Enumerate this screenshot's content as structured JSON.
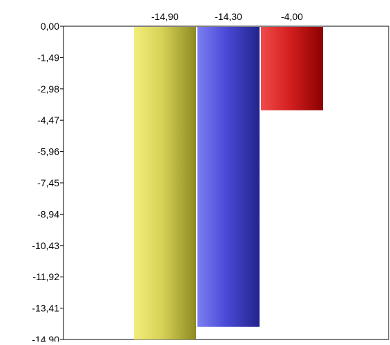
{
  "chart_data": {
    "type": "bar",
    "title": "",
    "xlabel": "",
    "ylabel": "",
    "ylim": [
      -14.9,
      0
    ],
    "y_ticks": [
      "0,00",
      "-1,49",
      "-2,98",
      "-4,47",
      "-5,96",
      "-7,45",
      "-8,94",
      "-10,43",
      "-11,92",
      "-13,41",
      "-14,90"
    ],
    "y_tick_values": [
      0,
      -1.49,
      -2.98,
      -4.47,
      -5.96,
      -7.45,
      -8.94,
      -10.43,
      -11.92,
      -13.41,
      -14.9
    ],
    "grid": false,
    "legend": "none",
    "bars": [
      {
        "value": -14.9,
        "label": "-14,90",
        "color_light": "#f2ee7a",
        "color_mid": "#d6d257",
        "color_dark": "#8f8a22"
      },
      {
        "value": -14.3,
        "label": "-14,30",
        "color_light": "#7d7ef0",
        "color_mid": "#4a4bd8",
        "color_dark": "#23238c"
      },
      {
        "value": -4.0,
        "label": "-4,00",
        "color_light": "#ef4b4b",
        "color_mid": "#d62020",
        "color_dark": "#8c0000"
      }
    ]
  }
}
